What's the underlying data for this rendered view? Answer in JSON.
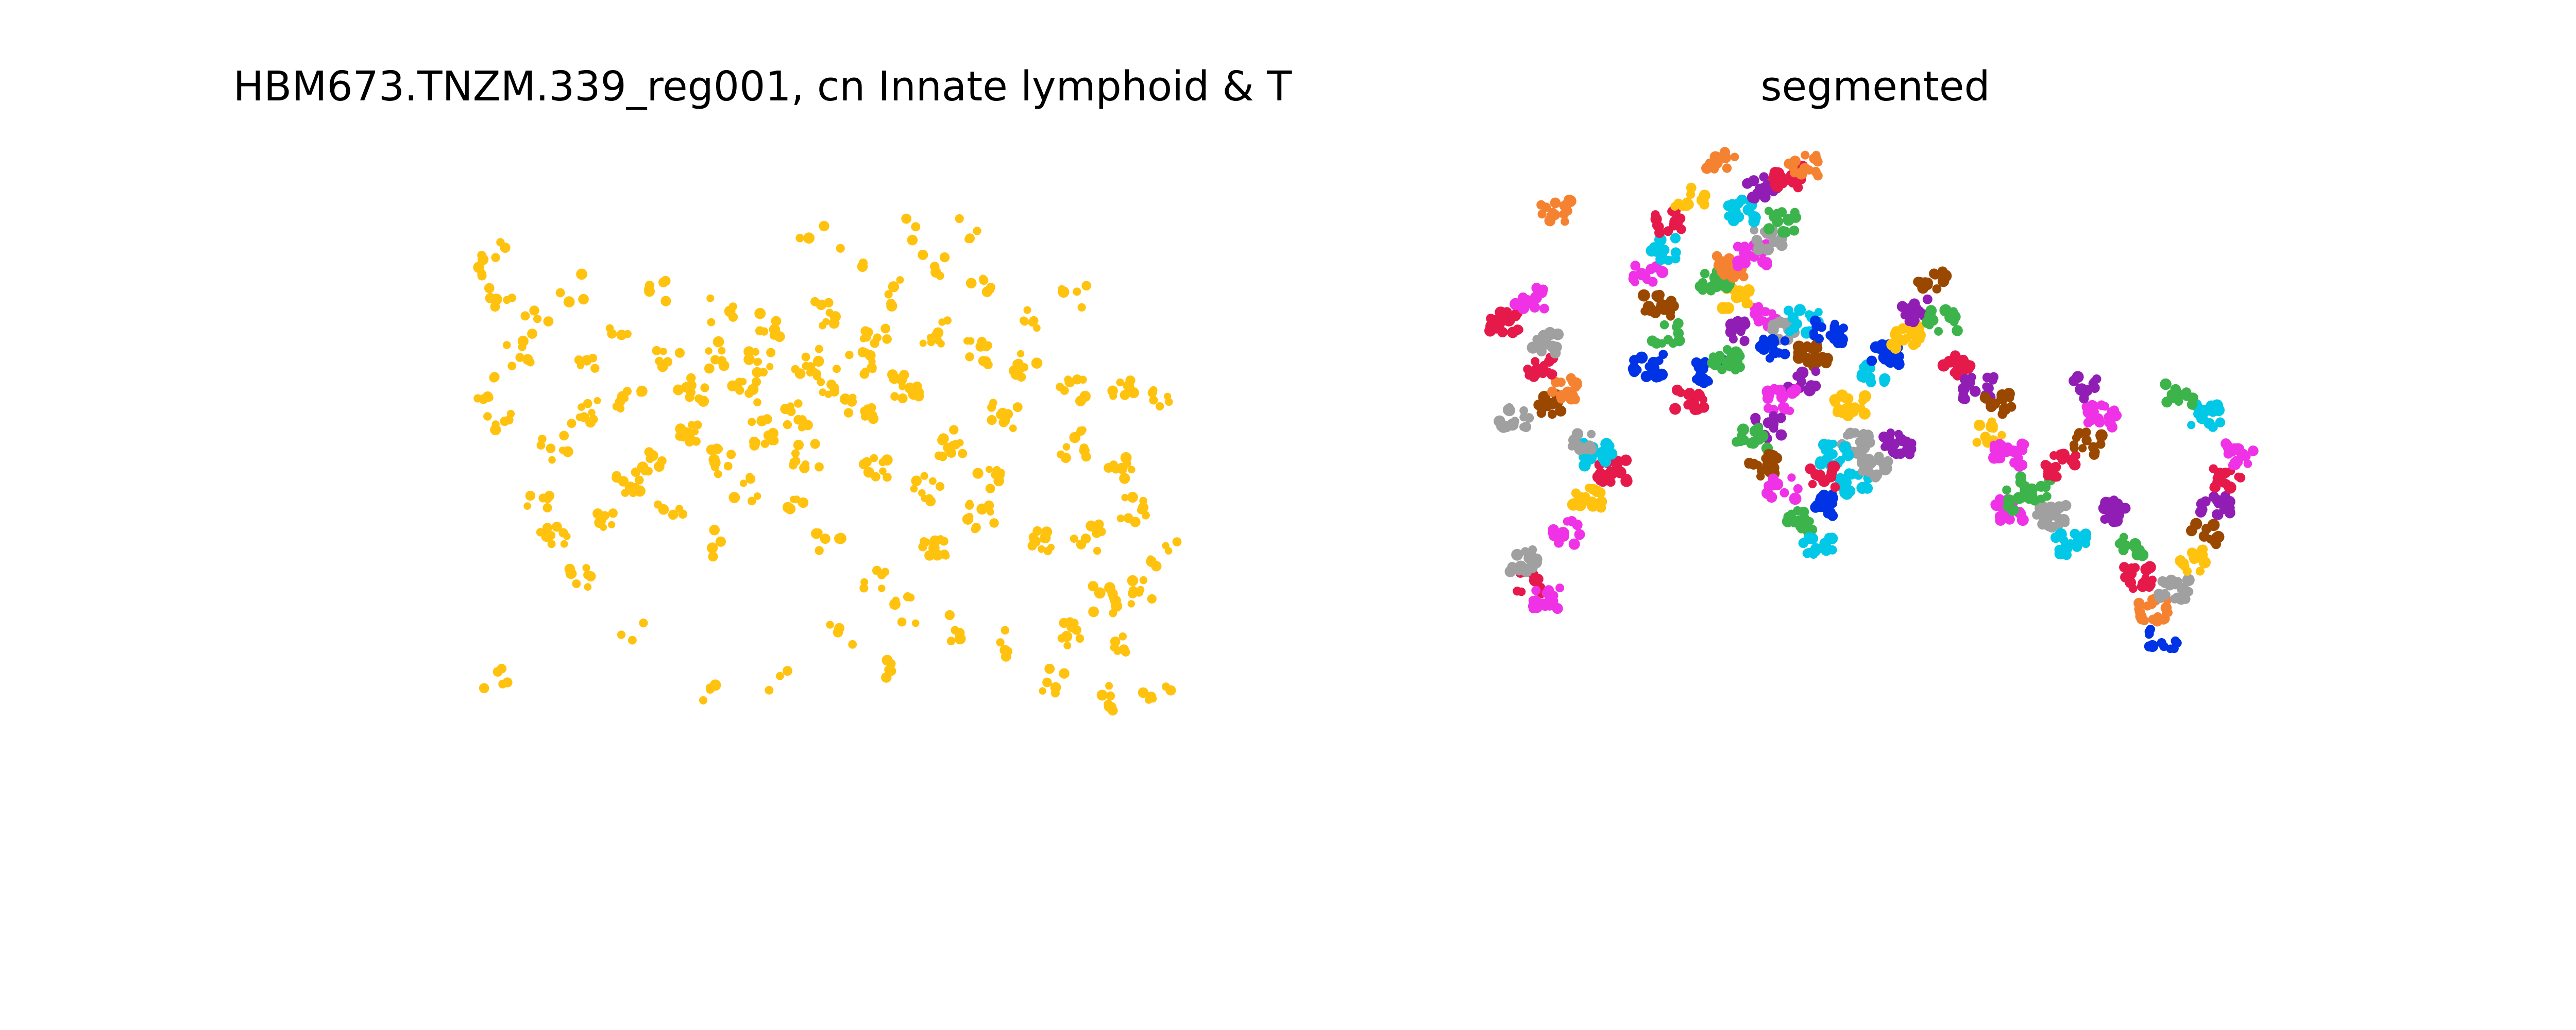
{
  "figure": {
    "panels": [
      "cn-panel",
      "segmented-panel"
    ]
  },
  "chart_data": [
    {
      "type": "scatter",
      "title": "HBM673.TNZM.339_reg001, cn Innate lymphoid & T",
      "axes_visible": false,
      "xlim": [
        0,
        1000
      ],
      "ylim": [
        0,
        1000
      ],
      "color": "#FFC20E",
      "clusters": [
        {
          "x": 120,
          "y": 940,
          "n": 5
        },
        {
          "x": 230,
          "y": 760,
          "n": 8
        },
        {
          "x": 200,
          "y": 690,
          "n": 9
        },
        {
          "x": 260,
          "y": 660,
          "n": 7
        },
        {
          "x": 180,
          "y": 610,
          "n": 6
        },
        {
          "x": 300,
          "y": 590,
          "n": 10
        },
        {
          "x": 330,
          "y": 560,
          "n": 8
        },
        {
          "x": 420,
          "y": 550,
          "n": 9
        },
        {
          "x": 370,
          "y": 510,
          "n": 12
        },
        {
          "x": 470,
          "y": 500,
          "n": 11
        },
        {
          "x": 520,
          "y": 470,
          "n": 10
        },
        {
          "x": 600,
          "y": 460,
          "n": 12
        },
        {
          "x": 660,
          "y": 420,
          "n": 13
        },
        {
          "x": 560,
          "y": 410,
          "n": 10
        },
        {
          "x": 450,
          "y": 430,
          "n": 8
        },
        {
          "x": 380,
          "y": 420,
          "n": 9
        },
        {
          "x": 300,
          "y": 440,
          "n": 8
        },
        {
          "x": 240,
          "y": 460,
          "n": 9
        },
        {
          "x": 200,
          "y": 530,
          "n": 7
        },
        {
          "x": 130,
          "y": 480,
          "n": 6
        },
        {
          "x": 110,
          "y": 420,
          "n": 6
        },
        {
          "x": 150,
          "y": 360,
          "n": 7
        },
        {
          "x": 180,
          "y": 300,
          "n": 5
        },
        {
          "x": 220,
          "y": 240,
          "n": 4
        },
        {
          "x": 130,
          "y": 250,
          "n": 5
        },
        {
          "x": 100,
          "y": 220,
          "n": 4
        },
        {
          "x": 120,
          "y": 180,
          "n": 5
        },
        {
          "x": 330,
          "y": 250,
          "n": 6
        },
        {
          "x": 420,
          "y": 280,
          "n": 5
        },
        {
          "x": 480,
          "y": 310,
          "n": 7
        },
        {
          "x": 560,
          "y": 290,
          "n": 8
        },
        {
          "x": 620,
          "y": 330,
          "n": 8
        },
        {
          "x": 700,
          "y": 320,
          "n": 9
        },
        {
          "x": 760,
          "y": 360,
          "n": 10
        },
        {
          "x": 820,
          "y": 380,
          "n": 9
        },
        {
          "x": 880,
          "y": 420,
          "n": 8
        },
        {
          "x": 950,
          "y": 420,
          "n": 7
        },
        {
          "x": 1000,
          "y": 440,
          "n": 6
        },
        {
          "x": 880,
          "y": 520,
          "n": 9
        },
        {
          "x": 940,
          "y": 560,
          "n": 8
        },
        {
          "x": 790,
          "y": 470,
          "n": 11
        },
        {
          "x": 720,
          "y": 520,
          "n": 12
        },
        {
          "x": 770,
          "y": 580,
          "n": 10
        },
        {
          "x": 690,
          "y": 600,
          "n": 9
        },
        {
          "x": 620,
          "y": 560,
          "n": 10
        },
        {
          "x": 700,
          "y": 700,
          "n": 12
        },
        {
          "x": 760,
          "y": 650,
          "n": 10
        },
        {
          "x": 840,
          "y": 700,
          "n": 9
        },
        {
          "x": 900,
          "y": 690,
          "n": 8
        },
        {
          "x": 960,
          "y": 640,
          "n": 9
        },
        {
          "x": 1000,
          "y": 720,
          "n": 7
        },
        {
          "x": 970,
          "y": 790,
          "n": 8
        },
        {
          "x": 920,
          "y": 800,
          "n": 9
        },
        {
          "x": 880,
          "y": 860,
          "n": 10
        },
        {
          "x": 950,
          "y": 870,
          "n": 7
        },
        {
          "x": 850,
          "y": 950,
          "n": 6
        },
        {
          "x": 920,
          "y": 980,
          "n": 7
        },
        {
          "x": 990,
          "y": 960,
          "n": 6
        },
        {
          "x": 800,
          "y": 880,
          "n": 5
        },
        {
          "x": 720,
          "y": 850,
          "n": 6
        },
        {
          "x": 640,
          "y": 920,
          "n": 5
        },
        {
          "x": 580,
          "y": 870,
          "n": 4
        },
        {
          "x": 400,
          "y": 960,
          "n": 4
        },
        {
          "x": 500,
          "y": 950,
          "n": 3
        },
        {
          "x": 300,
          "y": 850,
          "n": 3
        },
        {
          "x": 520,
          "y": 640,
          "n": 5
        },
        {
          "x": 560,
          "y": 700,
          "n": 6
        },
        {
          "x": 620,
          "y": 760,
          "n": 7
        },
        {
          "x": 660,
          "y": 820,
          "n": 6
        },
        {
          "x": 400,
          "y": 700,
          "n": 4
        },
        {
          "x": 350,
          "y": 640,
          "n": 5
        },
        {
          "x": 450,
          "y": 600,
          "n": 6
        },
        {
          "x": 530,
          "y": 540,
          "n": 9
        },
        {
          "x": 470,
          "y": 380,
          "n": 9
        },
        {
          "x": 530,
          "y": 370,
          "n": 8
        },
        {
          "x": 600,
          "y": 380,
          "n": 10
        },
        {
          "x": 420,
          "y": 360,
          "n": 7
        },
        {
          "x": 350,
          "y": 370,
          "n": 6
        },
        {
          "x": 250,
          "y": 380,
          "n": 5
        },
        {
          "x": 280,
          "y": 300,
          "n": 4
        },
        {
          "x": 640,
          "y": 250,
          "n": 5
        },
        {
          "x": 700,
          "y": 200,
          "n": 5
        },
        {
          "x": 760,
          "y": 240,
          "n": 6
        },
        {
          "x": 590,
          "y": 180,
          "n": 4
        },
        {
          "x": 540,
          "y": 150,
          "n": 3
        },
        {
          "x": 660,
          "y": 140,
          "n": 4
        },
        {
          "x": 820,
          "y": 300,
          "n": 6
        },
        {
          "x": 880,
          "y": 250,
          "n": 5
        },
        {
          "x": 740,
          "y": 130,
          "n": 4
        }
      ]
    },
    {
      "type": "scatter",
      "title": "segmented",
      "axes_visible": false,
      "xlim": [
        0,
        1000
      ],
      "ylim": [
        0,
        1000
      ],
      "palette": [
        "#E6194B",
        "#F58231",
        "#FFC20E",
        "#3CB44B",
        "#00C8E6",
        "#0033E6",
        "#911EB4",
        "#F032E6",
        "#A0A0A0",
        "#9A4800"
      ],
      "clusters": [
        {
          "x": 70,
          "y": 770,
          "c": 0
        },
        {
          "x": 100,
          "y": 800,
          "c": 7
        },
        {
          "x": 60,
          "y": 730,
          "c": 8
        },
        {
          "x": 140,
          "y": 680,
          "c": 7
        },
        {
          "x": 180,
          "y": 620,
          "c": 2
        },
        {
          "x": 230,
          "y": 570,
          "c": 0
        },
        {
          "x": 200,
          "y": 540,
          "c": 4
        },
        {
          "x": 160,
          "y": 520,
          "c": 8
        },
        {
          "x": 40,
          "y": 470,
          "c": 8
        },
        {
          "x": 110,
          "y": 450,
          "c": 9
        },
        {
          "x": 130,
          "y": 420,
          "c": 1
        },
        {
          "x": 90,
          "y": 380,
          "c": 0
        },
        {
          "x": 100,
          "y": 340,
          "c": 8
        },
        {
          "x": 20,
          "y": 300,
          "c": 0
        },
        {
          "x": 70,
          "y": 260,
          "c": 7
        },
        {
          "x": 120,
          "y": 100,
          "c": 1
        },
        {
          "x": 300,
          "y": 380,
          "c": 5
        },
        {
          "x": 330,
          "y": 320,
          "c": 3
        },
        {
          "x": 320,
          "y": 270,
          "c": 9
        },
        {
          "x": 300,
          "y": 220,
          "c": 7
        },
        {
          "x": 330,
          "y": 170,
          "c": 4
        },
        {
          "x": 340,
          "y": 120,
          "c": 0
        },
        {
          "x": 380,
          "y": 80,
          "c": 2
        },
        {
          "x": 380,
          "y": 440,
          "c": 0
        },
        {
          "x": 420,
          "y": 390,
          "c": 5
        },
        {
          "x": 450,
          "y": 370,
          "c": 3
        },
        {
          "x": 480,
          "y": 320,
          "c": 6
        },
        {
          "x": 520,
          "y": 290,
          "c": 7
        },
        {
          "x": 470,
          "y": 260,
          "c": 2
        },
        {
          "x": 430,
          "y": 230,
          "c": 3
        },
        {
          "x": 460,
          "y": 200,
          "c": 1
        },
        {
          "x": 500,
          "y": 180,
          "c": 7
        },
        {
          "x": 530,
          "y": 150,
          "c": 8
        },
        {
          "x": 560,
          "y": 120,
          "c": 3
        },
        {
          "x": 480,
          "y": 100,
          "c": 4
        },
        {
          "x": 520,
          "y": 60,
          "c": 6
        },
        {
          "x": 570,
          "y": 40,
          "c": 0
        },
        {
          "x": 600,
          "y": 20,
          "c": 1
        },
        {
          "x": 440,
          "y": 10,
          "c": 1
        },
        {
          "x": 560,
          "y": 320,
          "c": 8
        },
        {
          "x": 540,
          "y": 350,
          "c": 5
        },
        {
          "x": 600,
          "y": 300,
          "c": 4
        },
        {
          "x": 620,
          "y": 360,
          "c": 9
        },
        {
          "x": 650,
          "y": 320,
          "c": 5
        },
        {
          "x": 600,
          "y": 410,
          "c": 6
        },
        {
          "x": 560,
          "y": 440,
          "c": 7
        },
        {
          "x": 530,
          "y": 490,
          "c": 6
        },
        {
          "x": 500,
          "y": 510,
          "c": 3
        },
        {
          "x": 520,
          "y": 560,
          "c": 9
        },
        {
          "x": 560,
          "y": 600,
          "c": 7
        },
        {
          "x": 600,
          "y": 660,
          "c": 3
        },
        {
          "x": 630,
          "y": 700,
          "c": 4
        },
        {
          "x": 650,
          "y": 630,
          "c": 5
        },
        {
          "x": 700,
          "y": 590,
          "c": 4
        },
        {
          "x": 740,
          "y": 560,
          "c": 8
        },
        {
          "x": 780,
          "y": 520,
          "c": 6
        },
        {
          "x": 700,
          "y": 520,
          "c": 8
        },
        {
          "x": 660,
          "y": 540,
          "c": 4
        },
        {
          "x": 640,
          "y": 580,
          "c": 0
        },
        {
          "x": 690,
          "y": 450,
          "c": 2
        },
        {
          "x": 730,
          "y": 400,
          "c": 4
        },
        {
          "x": 760,
          "y": 360,
          "c": 5
        },
        {
          "x": 800,
          "y": 330,
          "c": 2
        },
        {
          "x": 820,
          "y": 280,
          "c": 6
        },
        {
          "x": 850,
          "y": 230,
          "c": 9
        },
        {
          "x": 870,
          "y": 300,
          "c": 3
        },
        {
          "x": 900,
          "y": 380,
          "c": 0
        },
        {
          "x": 940,
          "y": 420,
          "c": 6
        },
        {
          "x": 980,
          "y": 450,
          "c": 9
        },
        {
          "x": 960,
          "y": 500,
          "c": 2
        },
        {
          "x": 1000,
          "y": 540,
          "c": 7
        },
        {
          "x": 1050,
          "y": 600,
          "c": 3
        },
        {
          "x": 1080,
          "y": 650,
          "c": 8
        },
        {
          "x": 1120,
          "y": 700,
          "c": 4
        },
        {
          "x": 1100,
          "y": 560,
          "c": 0
        },
        {
          "x": 1150,
          "y": 520,
          "c": 9
        },
        {
          "x": 1180,
          "y": 470,
          "c": 7
        },
        {
          "x": 1140,
          "y": 420,
          "c": 6
        },
        {
          "x": 1000,
          "y": 640,
          "c": 7
        },
        {
          "x": 1020,
          "y": 620,
          "c": 3
        },
        {
          "x": 1200,
          "y": 640,
          "c": 6
        },
        {
          "x": 1230,
          "y": 700,
          "c": 3
        },
        {
          "x": 1250,
          "y": 760,
          "c": 0
        },
        {
          "x": 1280,
          "y": 820,
          "c": 1
        },
        {
          "x": 1300,
          "y": 870,
          "c": 5
        },
        {
          "x": 1320,
          "y": 780,
          "c": 8
        },
        {
          "x": 1350,
          "y": 730,
          "c": 2
        },
        {
          "x": 1380,
          "y": 680,
          "c": 9
        },
        {
          "x": 1400,
          "y": 630,
          "c": 6
        },
        {
          "x": 1420,
          "y": 580,
          "c": 0
        },
        {
          "x": 1450,
          "y": 540,
          "c": 7
        },
        {
          "x": 1380,
          "y": 470,
          "c": 4
        },
        {
          "x": 1330,
          "y": 430,
          "c": 3
        }
      ]
    }
  ]
}
